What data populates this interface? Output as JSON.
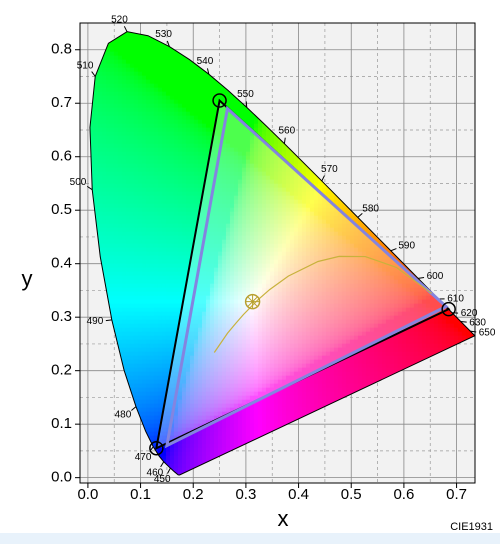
{
  "chart_data": {
    "type": "chromaticity",
    "caption": "CIE1931",
    "xlabel": "x",
    "ylabel": "y",
    "xlim": [
      -0.015,
      0.735
    ],
    "ylim": [
      -0.01,
      0.85
    ],
    "xticks": [
      {
        "value": 0,
        "label": "0.0"
      },
      0.1,
      0.2,
      0.3,
      0.4,
      0.5,
      0.6,
      0.7
    ],
    "yticks": [
      {
        "value": 0,
        "label": "0.0"
      },
      0.1,
      0.2,
      0.3,
      0.4,
      0.5,
      0.6,
      0.7,
      0.8
    ],
    "xminorticks": [
      0.05,
      0.15,
      0.25,
      0.35,
      0.45,
      0.55,
      0.65
    ],
    "yminorticks": [
      0.05,
      0.15,
      0.25,
      0.35,
      0.45,
      0.55,
      0.65,
      0.75
    ],
    "grid": true,
    "spectral_locus": {
      "x": [
        0.1741,
        0.1714,
        0.1644,
        0.1566,
        0.144,
        0.1355,
        0.1241,
        0.1096,
        0.0913,
        0.0687,
        0.0454,
        0.0235,
        0.0082,
        0.0039,
        0.0139,
        0.0389,
        0.0743,
        0.1142,
        0.1547,
        0.1929,
        0.2296,
        0.2658,
        0.3016,
        0.3373,
        0.3731,
        0.4441,
        0.5125,
        0.5752,
        0.627,
        0.6658,
        0.6915,
        0.7079,
        0.726,
        0.7347
      ],
      "y": [
        0.005,
        0.0051,
        0.0109,
        0.0177,
        0.0297,
        0.0399,
        0.0578,
        0.0868,
        0.1327,
        0.2007,
        0.295,
        0.4127,
        0.5384,
        0.6548,
        0.7502,
        0.812,
        0.8338,
        0.8262,
        0.8059,
        0.7816,
        0.7543,
        0.7243,
        0.6923,
        0.6589,
        0.6245,
        0.5547,
        0.4866,
        0.4242,
        0.3725,
        0.334,
        0.3083,
        0.292,
        0.274,
        0.2653
      ]
    },
    "wavelength_labels": {
      "labels": [
        450,
        460,
        470,
        480,
        490,
        500,
        510,
        520,
        530,
        540,
        550,
        560,
        570,
        580,
        590,
        600,
        610,
        620,
        630,
        650
      ],
      "x": [
        0.1566,
        0.144,
        0.1241,
        0.0913,
        0.0454,
        0.0082,
        0.0139,
        0.0743,
        0.1547,
        0.2296,
        0.3016,
        0.3731,
        0.4441,
        0.5125,
        0.5752,
        0.627,
        0.6658,
        0.6915,
        0.7079,
        0.726
      ],
      "y": [
        0.0177,
        0.0297,
        0.0578,
        0.1327,
        0.295,
        0.5384,
        0.7502,
        0.8338,
        0.8059,
        0.7543,
        0.6923,
        0.6245,
        0.5547,
        0.4866,
        0.4242,
        0.3725,
        0.334,
        0.3083,
        0.292,
        0.274
      ]
    },
    "planckian_locus": {
      "x": [
        0.6528,
        0.5857,
        0.5267,
        0.477,
        0.4369,
        0.3805,
        0.3451,
        0.3221,
        0.2952,
        0.2807,
        0.265,
        0.24
      ],
      "y": [
        0.3444,
        0.3931,
        0.4133,
        0.4137,
        0.4041,
        0.3768,
        0.3516,
        0.3318,
        0.3048,
        0.2884,
        0.27,
        0.234
      ],
      "color": "#c8b23c"
    },
    "gamuts": [
      {
        "x": [
          0.25,
          0.685,
          0.13
        ],
        "y": [
          0.705,
          0.315,
          0.055
        ],
        "color": "#000000"
      },
      {
        "x": [
          0.265,
          0.68,
          0.15
        ],
        "y": [
          0.69,
          0.32,
          0.06
        ],
        "color": "#8484e0"
      }
    ],
    "white_point": {
      "x": 0.3127,
      "y": 0.329,
      "color": "#b8a030"
    }
  }
}
